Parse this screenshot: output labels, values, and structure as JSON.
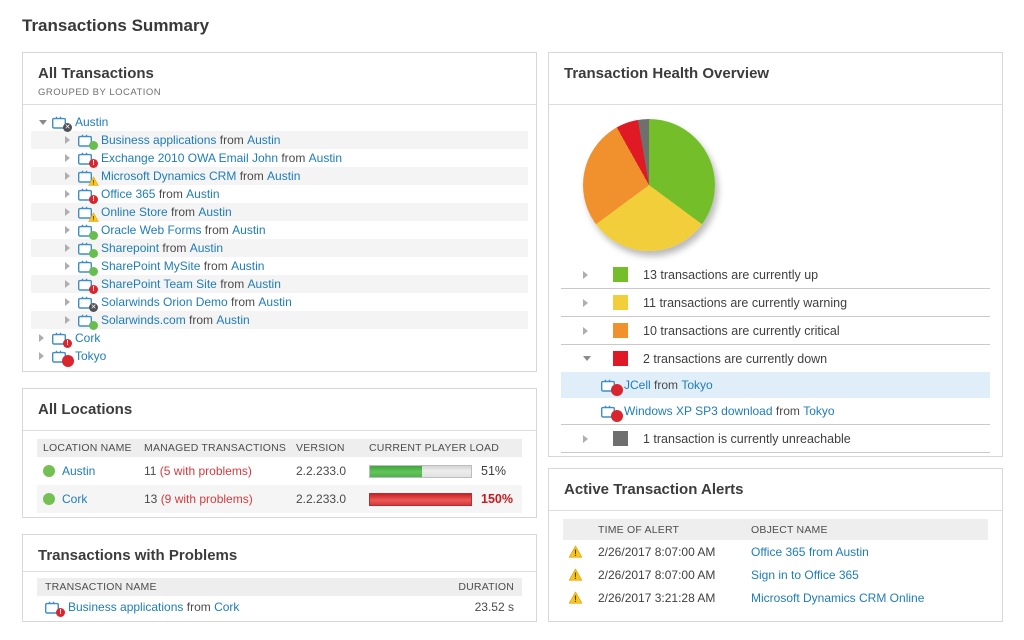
{
  "page": {
    "title": "Transactions Summary"
  },
  "colors": {
    "link": "#1f7cb8",
    "status_up": "#67bd4d",
    "status_warning": "#f5c913",
    "status_critical": "#d9252e",
    "status_down": "#d9252e",
    "status_unknown": "#515155",
    "problem_text": "#d43a3e",
    "overload_text": "#c8191e"
  },
  "all_transactions": {
    "title": "All Transactions",
    "subtitle": "GROUPED BY LOCATION",
    "tree": [
      {
        "level": 0,
        "expanded": true,
        "status": "unknown",
        "label": "Austin"
      },
      {
        "level": 1,
        "expanded": false,
        "status": "up",
        "name": "Business applications",
        "from": "from",
        "location": "Austin",
        "zebra": true
      },
      {
        "level": 1,
        "expanded": false,
        "status": "critical",
        "name": "Exchange 2010 OWA Email John",
        "from": "from",
        "location": "Austin",
        "zebra": false
      },
      {
        "level": 1,
        "expanded": false,
        "status": "warning",
        "name": "Microsoft Dynamics CRM",
        "from": "from",
        "location": "Austin",
        "zebra": true
      },
      {
        "level": 1,
        "expanded": false,
        "status": "critical",
        "name": "Office 365",
        "from": "from",
        "location": "Austin",
        "zebra": false
      },
      {
        "level": 1,
        "expanded": false,
        "status": "warning",
        "name": "Online Store",
        "from": "from",
        "location": "Austin",
        "zebra": true
      },
      {
        "level": 1,
        "expanded": false,
        "status": "up",
        "name": "Oracle Web Forms",
        "from": "from",
        "location": "Austin",
        "zebra": false
      },
      {
        "level": 1,
        "expanded": false,
        "status": "up",
        "name": "Sharepoint",
        "from": "from",
        "location": "Austin",
        "zebra": true
      },
      {
        "level": 1,
        "expanded": false,
        "status": "up",
        "name": "SharePoint MySite",
        "from": "from",
        "location": "Austin",
        "zebra": false
      },
      {
        "level": 1,
        "expanded": false,
        "status": "critical",
        "name": "SharePoint Team Site",
        "from": "from",
        "location": "Austin",
        "zebra": true
      },
      {
        "level": 1,
        "expanded": false,
        "status": "unknown",
        "name": "Solarwinds Orion Demo",
        "from": "from",
        "location": "Austin",
        "zebra": false
      },
      {
        "level": 1,
        "expanded": false,
        "status": "up",
        "name": "Solarwinds.com",
        "from": "from",
        "location": "Austin",
        "zebra": true
      },
      {
        "level": 0,
        "expanded": false,
        "status": "critical",
        "label": "Cork"
      },
      {
        "level": 0,
        "expanded": false,
        "status": "down",
        "label": "Tokyo"
      }
    ]
  },
  "health_overview": {
    "title": "Transaction Health Overview",
    "legend": [
      {
        "text": "13 transactions are currently up",
        "color": "#74be29",
        "expanded": false,
        "children": []
      },
      {
        "text": "11 transactions are currently warning",
        "color": "#f2ce3a",
        "expanded": false,
        "children": []
      },
      {
        "text": "10 transactions are currently critical",
        "color": "#f0912d",
        "expanded": false,
        "children": []
      },
      {
        "text": "2 transactions are currently down",
        "color": "#e01a25",
        "expanded": true,
        "children": [
          {
            "name": "JCell",
            "from": "from",
            "location": "Tokyo",
            "status": "down",
            "selected": true
          },
          {
            "name": "Windows XP SP3 download",
            "from": "from",
            "location": "Tokyo",
            "status": "down",
            "selected": false
          }
        ]
      },
      {
        "text": "1 transaction is currently unreachable",
        "color": "#6f6f6f",
        "expanded": false,
        "children": []
      }
    ]
  },
  "chart_data": {
    "type": "pie",
    "title": "Transaction Health Overview",
    "labels": [
      "up",
      "warning",
      "critical",
      "down",
      "unreachable"
    ],
    "values": [
      13,
      11,
      10,
      2,
      1
    ],
    "colors": [
      "#74be29",
      "#f2ce3a",
      "#f0912d",
      "#e01a25",
      "#6f6f6f"
    ],
    "legend_position": "bottom",
    "start_angle_deg": 0,
    "direction": "clockwise"
  },
  "locations": {
    "title": "All Locations",
    "columns": [
      "LOCATION NAME",
      "MANAGED TRANSACTIONS",
      "VERSION",
      "CURRENT PLAYER LOAD"
    ],
    "rows": [
      {
        "name": "Austin",
        "managed": "11",
        "problems": "(5 with problems)",
        "version": "2.2.233.0",
        "load_fill": 51,
        "load_label": "51%",
        "overload": false,
        "zebra": false
      },
      {
        "name": "Cork",
        "managed": "13",
        "problems": "(9 with problems)",
        "version": "2.2.233.0",
        "load_fill": 100,
        "load_label": "150%",
        "overload": true,
        "zebra": true
      }
    ]
  },
  "problems": {
    "title": "Transactions with Problems",
    "columns": [
      "TRANSACTION NAME",
      "DURATION"
    ],
    "rows": [
      {
        "status": "critical",
        "name": "Business applications",
        "from": "from",
        "location": "Cork",
        "duration": "23.52 s"
      }
    ]
  },
  "alerts": {
    "title": "Active Transaction Alerts",
    "columns": [
      "TIME OF ALERT",
      "OBJECT NAME"
    ],
    "rows": [
      {
        "time": "2/26/2017 8:07:00 AM",
        "object": "Office 365 from Austin"
      },
      {
        "time": "2/26/2017 8:07:00 AM",
        "object": "Sign in to Office 365"
      },
      {
        "time": "2/26/2017 3:21:28 AM",
        "object": "Microsoft Dynamics CRM Online"
      }
    ]
  }
}
